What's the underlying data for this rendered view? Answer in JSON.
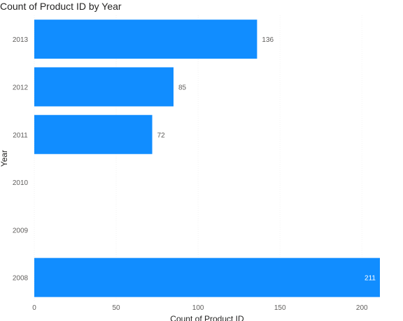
{
  "chart_data": {
    "type": "bar",
    "orientation": "horizontal",
    "title": "Count of Product ID by Year",
    "xlabel": "Count of Product ID",
    "ylabel": "Year",
    "categories": [
      "2013",
      "2012",
      "2011",
      "2010",
      "2009",
      "2008"
    ],
    "values": [
      136,
      85,
      72,
      null,
      null,
      211
    ],
    "data_labels": [
      "136",
      "85",
      "72",
      "",
      "",
      "211"
    ],
    "xlim": [
      0,
      211
    ],
    "x_ticks": [
      0,
      50,
      100,
      150,
      200
    ],
    "grid": true,
    "legend": "none",
    "colors": {
      "bar": "#118DFF",
      "label_outside": "#605e5c",
      "label_inside": "#ffffff"
    }
  }
}
